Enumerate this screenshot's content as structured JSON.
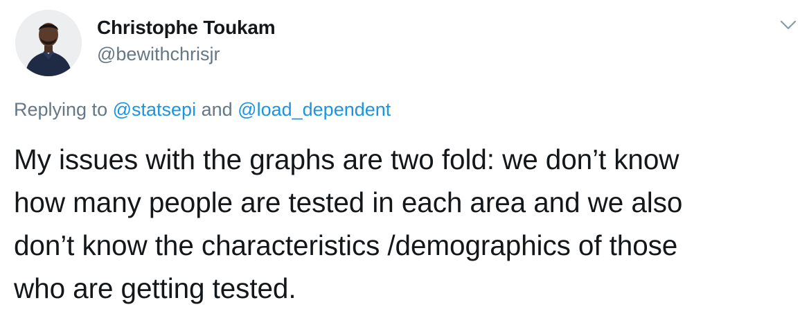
{
  "author": {
    "display_name": "Christophe Toukam",
    "handle": "@bewithchrisjr",
    "avatar_icon": "user-avatar-photo"
  },
  "menu": {
    "icon": "chevron-down-icon",
    "color": "#8899a6"
  },
  "reply": {
    "prefix": "Replying to",
    "mention_1": "@statsepi",
    "joiner": "and",
    "mention_2": "@load_dependent",
    "link_color": "#1b95e0"
  },
  "tweet": {
    "lines": [
      "My issues with the graphs are two fold: we don’t know",
      "how many people are tested in each area and we also",
      "don’t know the characteristics /demographics of those",
      "who are getting tested."
    ]
  }
}
